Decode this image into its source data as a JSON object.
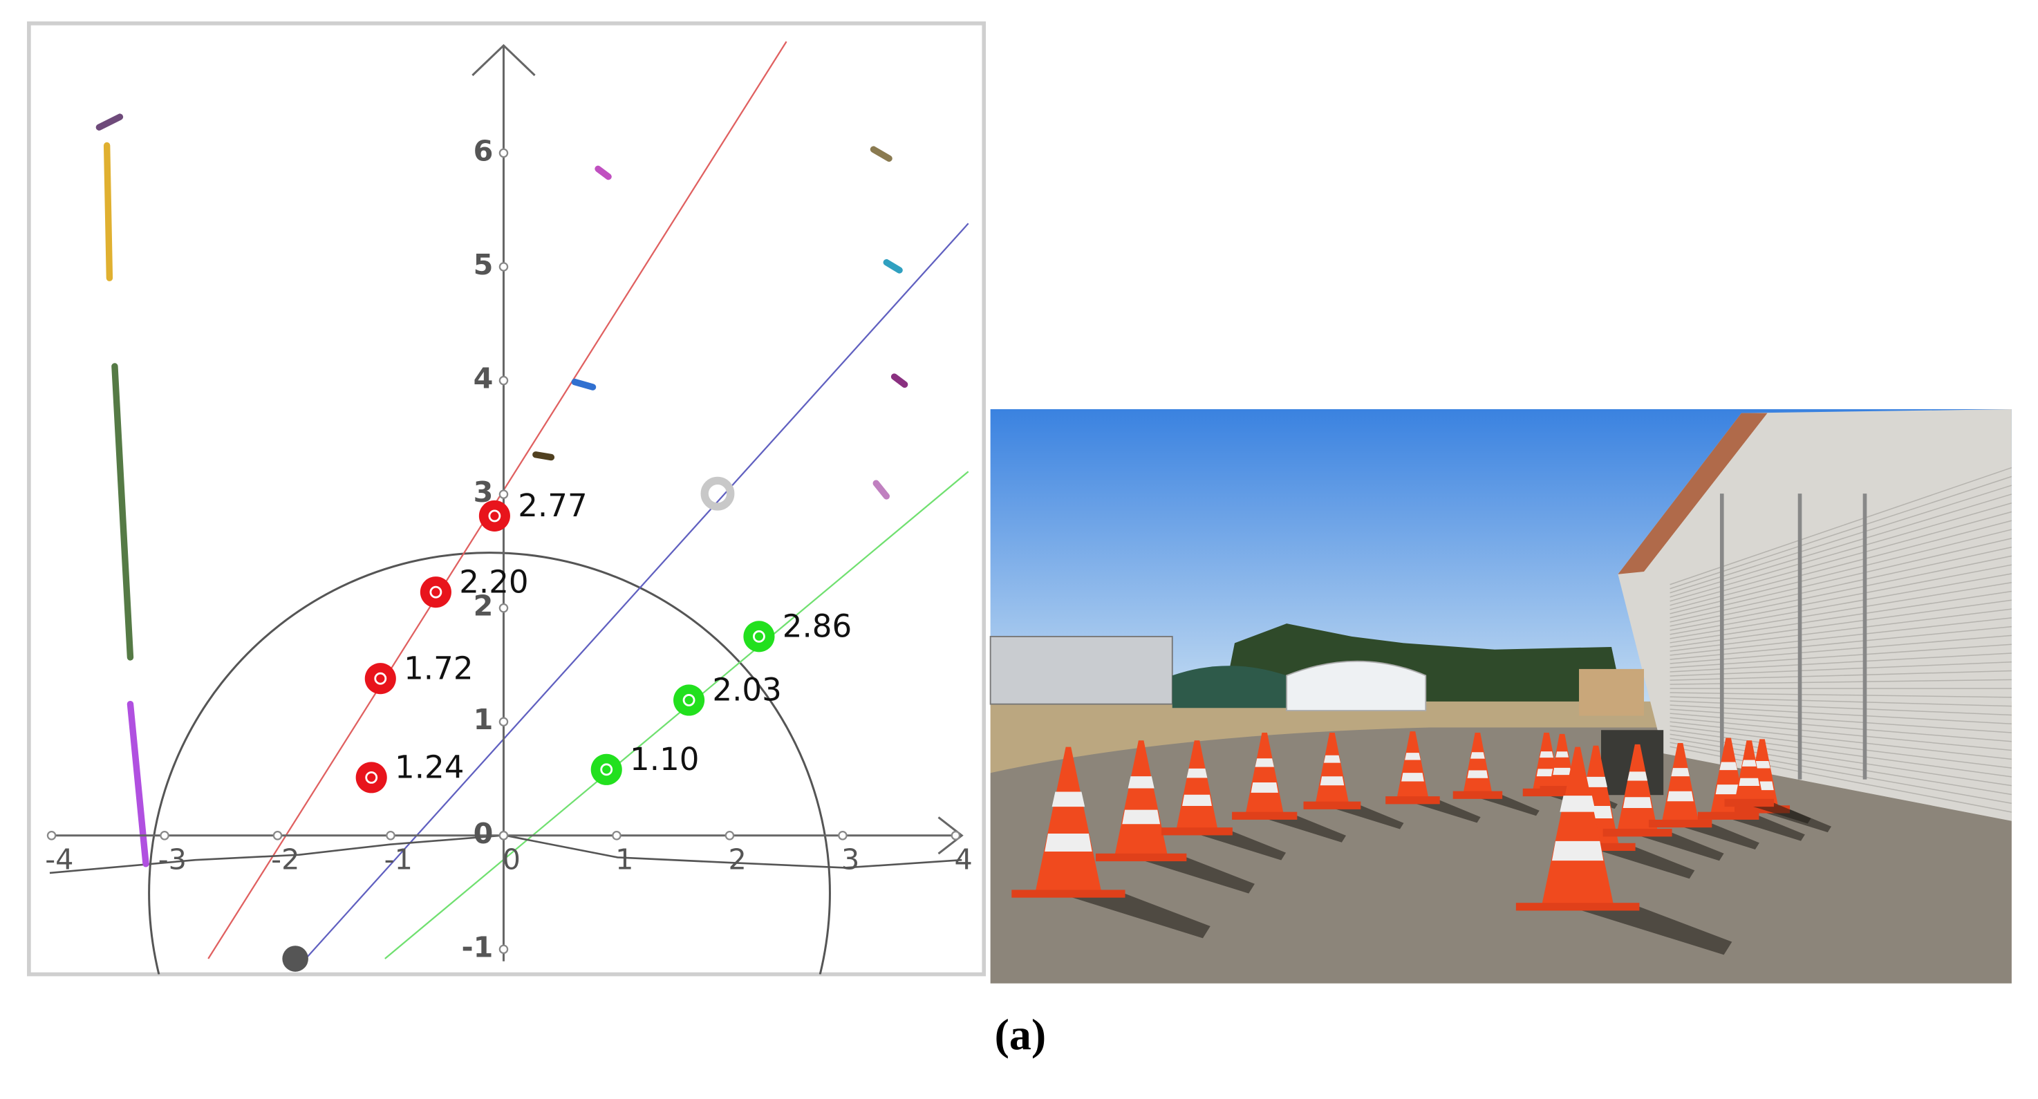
{
  "chart_data": {
    "type": "scatter",
    "xlim": [
      -4.2,
      4.25
    ],
    "ylim": [
      -1.22,
      7.14
    ],
    "xticks": [
      -4,
      -3,
      -2,
      -1,
      0,
      1,
      2,
      3,
      4
    ],
    "yticks": [
      -1,
      0,
      1,
      2,
      3,
      4,
      5,
      6
    ],
    "series": [
      {
        "color": "#e8141c",
        "x": [
          -0.08,
          -0.6,
          -1.09,
          -1.17
        ],
        "values": [
          2.81,
          2.14,
          1.38,
          0.51
        ],
        "labels": [
          "2.77",
          "2.20",
          "1.72",
          "1.24"
        ]
      },
      {
        "color": "#22e01e",
        "x": [
          0.91,
          1.64,
          2.26
        ],
        "values": [
          0.58,
          1.19,
          1.75
        ],
        "labels": [
          "1.10",
          "2.03",
          "2.86"
        ]
      }
    ]
  },
  "caption": "(a)"
}
